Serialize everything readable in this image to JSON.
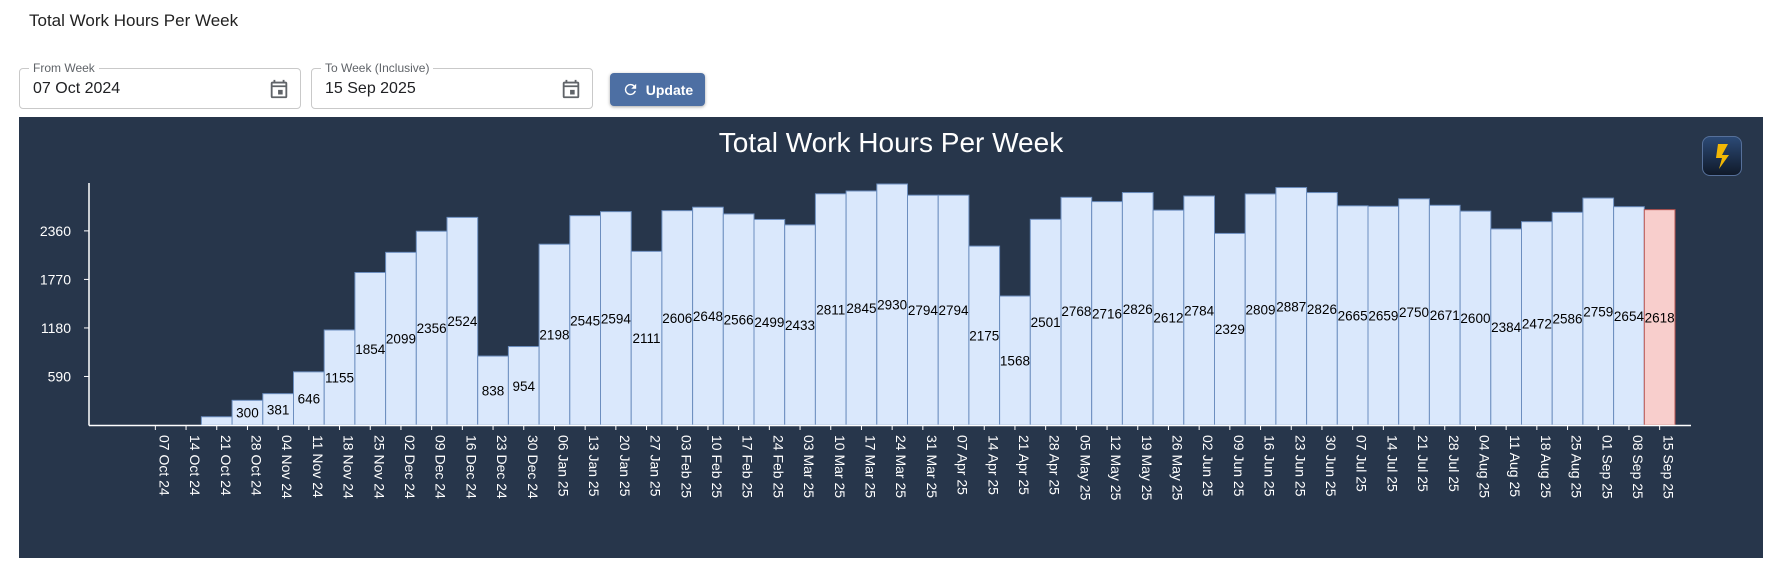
{
  "page": {
    "title": "Total Work Hours Per Week"
  },
  "filters": {
    "from": {
      "label": "From Week",
      "value": "07 Oct 2024"
    },
    "to": {
      "label": "To Week (Inclusive)",
      "value": "15 Sep 2025"
    },
    "update_label": "Update",
    "icons": {
      "calendar": "calendar-icon",
      "refresh": "refresh-icon"
    },
    "accent_color": "#4d6fa3"
  },
  "chart_panel": {
    "background": "#27364b",
    "logo_icon": "lightning-logo-icon"
  },
  "chart_data": {
    "type": "bar",
    "title": "Total Work Hours Per Week",
    "xlabel": "",
    "ylabel": "",
    "yticks": [
      590,
      1180,
      1770,
      2360
    ],
    "ylim": [
      0,
      2930
    ],
    "categories": [
      "07 Oct 24",
      "14 Oct 24",
      "21 Oct 24",
      "28 Oct 24",
      "04 Nov 24",
      "11 Nov 24",
      "18 Nov 24",
      "25 Nov 24",
      "02 Dec 24",
      "09 Dec 24",
      "16 Dec 24",
      "23 Dec 24",
      "30 Dec 24",
      "06 Jan 25",
      "13 Jan 25",
      "20 Jan 25",
      "27 Jan 25",
      "03 Feb 25",
      "10 Feb 25",
      "17 Feb 25",
      "24 Feb 25",
      "03 Mar 25",
      "10 Mar 25",
      "17 Mar 25",
      "24 Mar 25",
      "31 Mar 25",
      "07 Apr 25",
      "14 Apr 25",
      "21 Apr 25",
      "28 Apr 25",
      "05 May 25",
      "12 May 25",
      "19 May 25",
      "26 May 25",
      "02 Jun 25",
      "09 Jun 25",
      "16 Jun 25",
      "23 Jun 25",
      "30 Jun 25",
      "07 Jul 25",
      "14 Jul 25",
      "21 Jul 25",
      "28 Jul 25",
      "04 Aug 25",
      "11 Aug 25",
      "18 Aug 25",
      "25 Aug 25",
      "01 Sep 25",
      "08 Sep 25",
      "15 Sep 25"
    ],
    "values": [
      0,
      0,
      100,
      300,
      381,
      646,
      1155,
      1854,
      2099,
      2356,
      2524,
      838,
      954,
      2198,
      2545,
      2594,
      2111,
      2606,
      2648,
      2566,
      2499,
      2433,
      2811,
      2845,
      2930,
      2794,
      2794,
      2175,
      1568,
      2501,
      2768,
      2716,
      2826,
      2612,
      2784,
      2329,
      2809,
      2887,
      2826,
      2665,
      2659,
      2750,
      2671,
      2600,
      2384,
      2472,
      2586,
      2759,
      2654,
      2618
    ],
    "data_labels": [
      "",
      "",
      "",
      "300",
      "381",
      "646",
      "1155",
      "1854",
      "2099",
      "2356",
      "2524",
      "838",
      "954",
      "2198",
      "2545",
      "2594",
      "2111",
      "2606",
      "2648",
      "2566",
      "2499",
      "2433",
      "2811",
      "2845",
      "2930",
      "2794",
      "2794",
      "2175",
      "1568",
      "2501",
      "2768",
      "2716",
      "2826",
      "2612",
      "2784",
      "2329",
      "2809",
      "2887",
      "2826",
      "2665",
      "2659",
      "2750",
      "2671",
      "2600",
      "2384",
      "2472",
      "2586",
      "2759",
      "2654",
      "2618"
    ],
    "bar_color": "#dae8fc",
    "bar_stroke": "#6c8ebf",
    "highlight_color": "#f8cecc",
    "highlight_stroke": "#b85450",
    "highlight_index": 49,
    "grid": false,
    "legend": "none"
  }
}
